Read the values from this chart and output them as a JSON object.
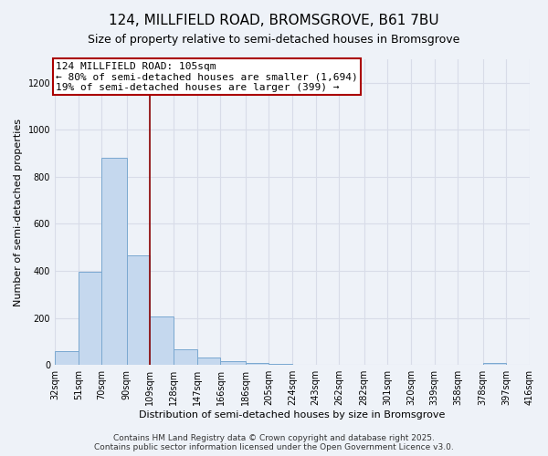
{
  "title": "124, MILLFIELD ROAD, BROMSGROVE, B61 7BU",
  "subtitle": "Size of property relative to semi-detached houses in Bromsgrove",
  "xlabel": "Distribution of semi-detached houses by size in Bromsgrove",
  "ylabel": "Number of semi-detached properties",
  "bin_edges": [
    32,
    51,
    70,
    90,
    109,
    128,
    147,
    166,
    186,
    205,
    224,
    243,
    262,
    282,
    301,
    320,
    339,
    358,
    378,
    397,
    416
  ],
  "bin_labels": [
    "32sqm",
    "51sqm",
    "70sqm",
    "90sqm",
    "109sqm",
    "128sqm",
    "147sqm",
    "166sqm",
    "186sqm",
    "205sqm",
    "224sqm",
    "243sqm",
    "262sqm",
    "282sqm",
    "301sqm",
    "320sqm",
    "339sqm",
    "358sqm",
    "378sqm",
    "397sqm",
    "416sqm"
  ],
  "counts": [
    60,
    395,
    880,
    465,
    205,
    65,
    30,
    18,
    10,
    5,
    0,
    0,
    0,
    0,
    0,
    0,
    0,
    0,
    10,
    0
  ],
  "bar_color": "#c5d8ee",
  "bar_edge_color": "#7aa8d0",
  "vline_x": 109,
  "vline_color": "#8b0000",
  "annotation_title": "124 MILLFIELD ROAD: 105sqm",
  "annotation_line1": "← 80% of semi-detached houses are smaller (1,694)",
  "annotation_line2": "19% of semi-detached houses are larger (399) →",
  "annotation_box_color": "#ffffff",
  "annotation_box_edge": "#aa0000",
  "ylim": [
    0,
    1300
  ],
  "yticks": [
    0,
    200,
    400,
    600,
    800,
    1000,
    1200
  ],
  "footer1": "Contains HM Land Registry data © Crown copyright and database right 2025.",
  "footer2": "Contains public sector information licensed under the Open Government Licence v3.0.",
  "bg_color": "#eef2f8",
  "grid_color": "#d8dce8",
  "title_fontsize": 11,
  "subtitle_fontsize": 9,
  "axis_label_fontsize": 8,
  "tick_fontsize": 7,
  "annotation_fontsize": 8,
  "footer_fontsize": 6.5
}
